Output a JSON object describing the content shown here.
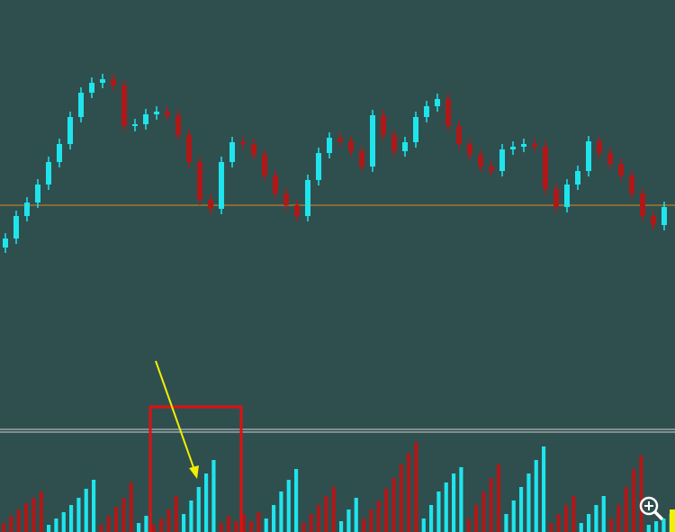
{
  "chart_data": [
    {
      "type": "candlestick",
      "ylim": [
        0,
        475
      ],
      "up_color": "#1fe4ec",
      "down_color": "#b01818",
      "reference_line": 247,
      "reference_color": "#e08a1e",
      "open": [
        200,
        210,
        235,
        250,
        270,
        295,
        315,
        345,
        372,
        383,
        387,
        380,
        335,
        337,
        348,
        351,
        347,
        325,
        295,
        253,
        243,
        295,
        317,
        315,
        303,
        280,
        260,
        247,
        235,
        275,
        305,
        322,
        318,
        307,
        290,
        347,
        325,
        307,
        317,
        345,
        357,
        365,
        335,
        315,
        303,
        290,
        285,
        309,
        312,
        315,
        312,
        265,
        245,
        270,
        285,
        318,
        305,
        293,
        280,
        260,
        235,
        225
      ],
      "high": [
        216,
        241,
        256,
        276,
        301,
        321,
        351,
        378,
        389,
        393,
        393,
        386,
        343,
        354,
        357,
        357,
        353,
        331,
        301,
        259,
        301,
        323,
        323,
        321,
        309,
        286,
        266,
        253,
        281,
        311,
        328,
        328,
        324,
        313,
        353,
        353,
        331,
        323,
        351,
        363,
        371,
        371,
        341,
        321,
        309,
        296,
        315,
        318,
        321,
        321,
        318,
        271,
        276,
        291,
        324,
        324,
        311,
        299,
        286,
        266,
        241,
        251
      ],
      "low": [
        194,
        204,
        229,
        244,
        264,
        289,
        309,
        339,
        366,
        377,
        374,
        329,
        329,
        331,
        342,
        341,
        319,
        289,
        247,
        237,
        237,
        289,
        309,
        297,
        274,
        254,
        241,
        229,
        229,
        269,
        299,
        312,
        301,
        284,
        284,
        319,
        301,
        301,
        311,
        339,
        351,
        329,
        309,
        297,
        284,
        279,
        279,
        303,
        306,
        306,
        259,
        239,
        239,
        264,
        279,
        299,
        287,
        274,
        254,
        229,
        219,
        219
      ],
      "close": [
        210,
        235,
        250,
        270,
        295,
        315,
        345,
        372,
        383,
        387,
        380,
        335,
        337,
        348,
        351,
        347,
        325,
        295,
        253,
        243,
        295,
        317,
        315,
        303,
        280,
        260,
        247,
        235,
        275,
        305,
        322,
        318,
        307,
        290,
        347,
        325,
        307,
        317,
        345,
        357,
        365,
        335,
        315,
        303,
        290,
        285,
        309,
        312,
        315,
        312,
        265,
        245,
        270,
        285,
        318,
        305,
        293,
        280,
        260,
        235,
        225,
        245
      ]
    },
    {
      "type": "bar",
      "ylim": [
        0,
        110
      ],
      "series": [
        {
          "color": "#b01818",
          "values": [
            10,
            18,
            25,
            32,
            38,
            45,
            null,
            null,
            null,
            null,
            null,
            null,
            null,
            8,
            18,
            28,
            38,
            55,
            null,
            null,
            8,
            15,
            25,
            40,
            null,
            null,
            null,
            null,
            null,
            10,
            18,
            12,
            20,
            12,
            22,
            null,
            null,
            null,
            null,
            null,
            10,
            20,
            30,
            40,
            50,
            null,
            null,
            null,
            15,
            25,
            35,
            48,
            60,
            75,
            88,
            100,
            null,
            null,
            null,
            null,
            null,
            null,
            15,
            30,
            45,
            60,
            75,
            null,
            null,
            null,
            null,
            null,
            null,
            10,
            20,
            30,
            40,
            null,
            null,
            null,
            null,
            15,
            30,
            50,
            70,
            85,
            null,
            null,
            null,
            null
          ]
        },
        {
          "color": "#1fe4ec",
          "values": [
            null,
            null,
            null,
            null,
            null,
            null,
            8,
            15,
            22,
            30,
            38,
            48,
            58,
            null,
            null,
            null,
            null,
            null,
            10,
            18,
            null,
            null,
            null,
            null,
            20,
            35,
            50,
            65,
            80,
            null,
            null,
            null,
            null,
            null,
            null,
            15,
            30,
            45,
            58,
            70,
            null,
            null,
            null,
            null,
            null,
            12,
            25,
            38,
            null,
            null,
            null,
            null,
            null,
            null,
            null,
            null,
            15,
            30,
            45,
            55,
            65,
            72,
            null,
            null,
            null,
            null,
            null,
            20,
            35,
            50,
            65,
            80,
            95,
            null,
            null,
            null,
            null,
            10,
            20,
            30,
            40,
            null,
            null,
            null,
            null,
            null,
            8,
            12,
            15,
            20
          ]
        }
      ]
    }
  ]
}
